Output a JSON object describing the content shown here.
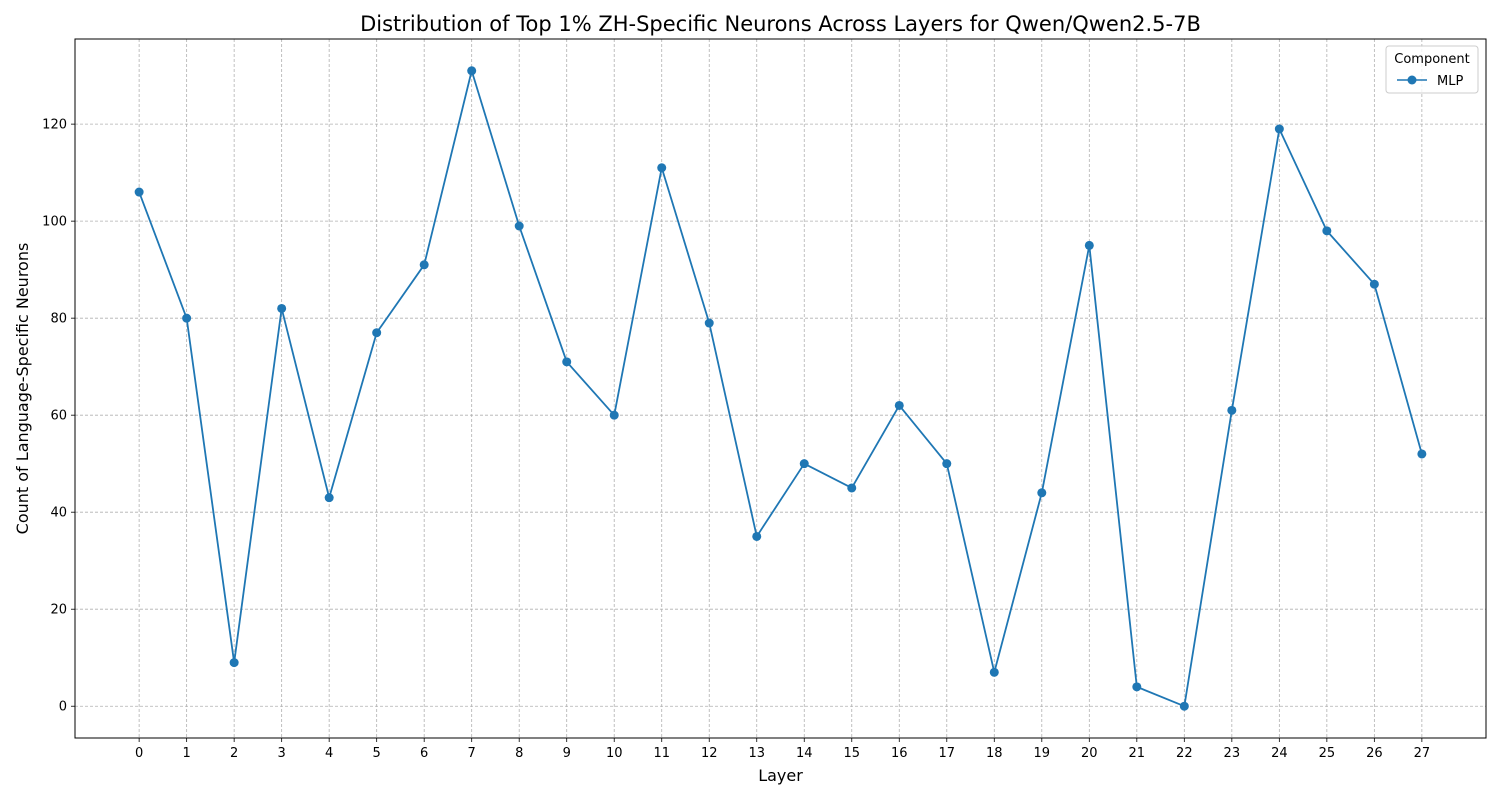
{
  "chart_data": {
    "type": "line",
    "title": "Distribution of Top 1% ZH-Specific Neurons Across Layers for Qwen/Qwen2.5-7B",
    "xlabel": "Layer",
    "ylabel": "Count of Language-Specific Neurons",
    "x": [
      0,
      1,
      2,
      3,
      4,
      5,
      6,
      7,
      8,
      9,
      10,
      11,
      12,
      13,
      14,
      15,
      16,
      17,
      18,
      19,
      20,
      21,
      22,
      23,
      24,
      25,
      26,
      27
    ],
    "xticks": [
      "0",
      "1",
      "2",
      "3",
      "4",
      "5",
      "6",
      "7",
      "8",
      "9",
      "10",
      "11",
      "12",
      "13",
      "14",
      "15",
      "16",
      "17",
      "18",
      "19",
      "20",
      "21",
      "22",
      "23",
      "24",
      "25",
      "26",
      "27"
    ],
    "yticks": [
      "0",
      "20",
      "40",
      "60",
      "80",
      "100",
      "120"
    ],
    "ylim": [
      -6.55,
      137.55
    ],
    "xlim": [
      -1.35,
      28.35
    ],
    "grid": true,
    "legend": {
      "title": "Component",
      "placement": "upper right"
    },
    "series": [
      {
        "name": "MLP",
        "color": "#1f77b4",
        "marker": "circle",
        "values": [
          106,
          80,
          9,
          82,
          43,
          77,
          91,
          131,
          99,
          71,
          60,
          111,
          79,
          35,
          50,
          45,
          62,
          50,
          7,
          44,
          95,
          4,
          0,
          61,
          119,
          98,
          87,
          52
        ]
      }
    ]
  }
}
